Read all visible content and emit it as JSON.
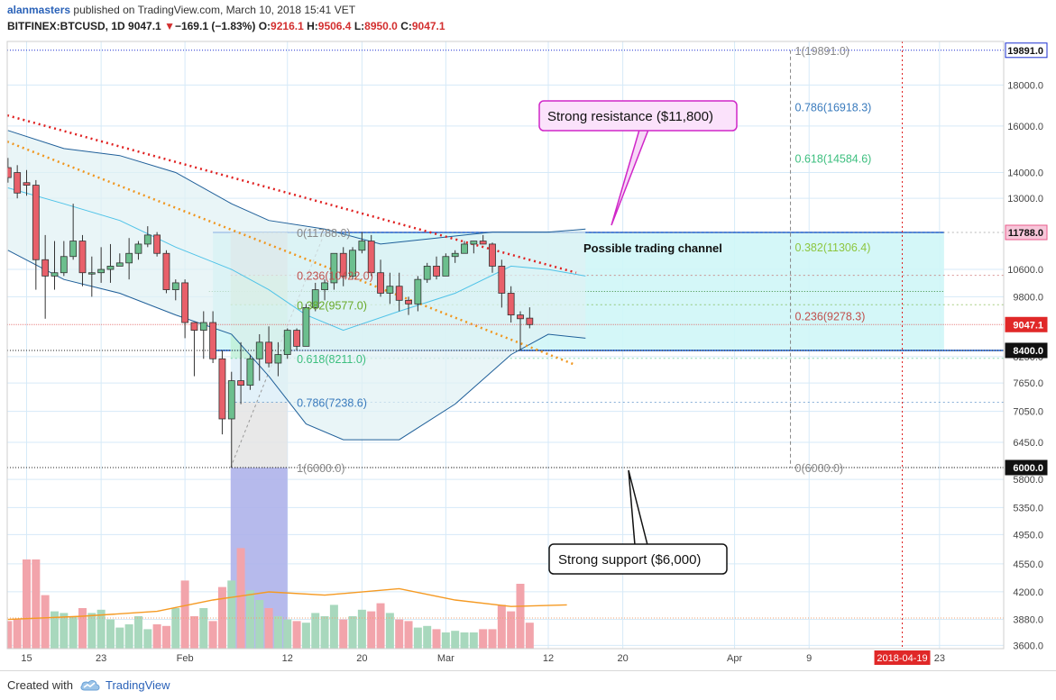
{
  "header": {
    "author": "alanmasters",
    "published_text": "published on TradingView.com, March 10, 2018 15:41 VET",
    "symbol": "BITFINEX:BTCUSD, 1D",
    "last": "9047.1",
    "change_arrow": "▼",
    "change": "−169.1 (−1.83%)",
    "o_label": "O:",
    "o": "9216.1",
    "h_label": "H:",
    "h": "9506.4",
    "l_label": "L:",
    "l": "8950.0",
    "c_label": "C:",
    "c": "9047.1"
  },
  "footer": {
    "created_with": "Created with",
    "brand": "TradingView"
  },
  "colors": {
    "up": "#6cbf8e",
    "down": "#e8606a",
    "up_vol": "#a8d8bd",
    "down_vol": "#f2a4ab",
    "bb": "#1f5f99",
    "bb_fill": "#dff1f4",
    "channel": "#cff6f7",
    "accent_blue": "#1e5fcf",
    "grid": "#d6eaf8"
  },
  "chart_data": {
    "type": "candlestick",
    "y_scale": "log",
    "ylim": [
      3500,
      21500
    ],
    "y_ticks": [
      3600,
      3880,
      4200,
      4550,
      4950,
      5350,
      5800,
      6450,
      7050,
      7650,
      8250,
      9800,
      10600,
      13000,
      14000,
      16000,
      18000
    ],
    "y_tick_labels": [
      "3600.0",
      "3880.0",
      "4200.0",
      "4550.0",
      "4950.0",
      "5350.0",
      "5800.0",
      "6450.0",
      "7050.0",
      "7650.0",
      "8250.0",
      "9800.0",
      "10600.0",
      "13000.0",
      "14000.0",
      "16000.0",
      "18000.0"
    ],
    "x_ticks": [
      "15",
      "23",
      "Feb",
      "12",
      "20",
      "Mar",
      "12",
      "20",
      "Apr",
      "9",
      "23"
    ],
    "x_tick_dates": [
      "2018-01-15",
      "2018-01-23",
      "2018-02-01",
      "2018-02-12",
      "2018-02-20",
      "2018-03-01",
      "2018-03-12",
      "2018-03-20",
      "2018-04-01",
      "2018-04-09",
      "2018-04-23"
    ],
    "x_range": [
      "2018-01-12",
      "2018-04-30"
    ],
    "marker_date_label": "2018-04-19",
    "price_tags": [
      {
        "value": 19891,
        "label": "19891.0",
        "style": "blue"
      },
      {
        "value": 11788,
        "label": "11788.0",
        "style": "pink"
      },
      {
        "value": 9047.1,
        "label": "9047.1",
        "style": "red"
      },
      {
        "value": 8400,
        "label": "8400.0",
        "style": "dark"
      },
      {
        "value": 6000,
        "label": "6000.0",
        "style": "dark"
      }
    ],
    "candles": [
      {
        "d": "2018-01-13",
        "o": 14200,
        "h": 14600,
        "l": 13600,
        "c": 13800
      },
      {
        "d": "2018-01-14",
        "o": 14000,
        "h": 14300,
        "l": 13000,
        "c": 13200
      },
      {
        "d": "2018-01-15",
        "o": 13600,
        "h": 14100,
        "l": 13100,
        "c": 13500
      },
      {
        "d": "2018-01-16",
        "o": 13500,
        "h": 13700,
        "l": 10000,
        "c": 10900
      },
      {
        "d": "2018-01-17",
        "o": 10900,
        "h": 11700,
        "l": 9200,
        "c": 10400
      },
      {
        "d": "2018-01-18",
        "o": 10400,
        "h": 11500,
        "l": 10000,
        "c": 10500
      },
      {
        "d": "2018-01-19",
        "o": 10500,
        "h": 11500,
        "l": 10400,
        "c": 11000
      },
      {
        "d": "2018-01-20",
        "o": 11000,
        "h": 12800,
        "l": 10900,
        "c": 11500
      },
      {
        "d": "2018-01-21",
        "o": 11500,
        "h": 11700,
        "l": 10100,
        "c": 10500
      },
      {
        "d": "2018-01-22",
        "o": 10500,
        "h": 11000,
        "l": 9800,
        "c": 10500
      },
      {
        "d": "2018-01-23",
        "o": 10500,
        "h": 11300,
        "l": 10200,
        "c": 10600
      },
      {
        "d": "2018-01-24",
        "o": 10600,
        "h": 11400,
        "l": 10200,
        "c": 10700
      },
      {
        "d": "2018-01-25",
        "o": 10700,
        "h": 11100,
        "l": 10700,
        "c": 10800
      },
      {
        "d": "2018-01-26",
        "o": 10800,
        "h": 11600,
        "l": 10300,
        "c": 11100
      },
      {
        "d": "2018-01-27",
        "o": 11100,
        "h": 11500,
        "l": 10900,
        "c": 11400
      },
      {
        "d": "2018-01-28",
        "o": 11400,
        "h": 12000,
        "l": 11300,
        "c": 11700
      },
      {
        "d": "2018-01-29",
        "o": 11700,
        "h": 11800,
        "l": 11000,
        "c": 11100
      },
      {
        "d": "2018-01-30",
        "o": 11100,
        "h": 11200,
        "l": 9900,
        "c": 10000
      },
      {
        "d": "2018-01-31",
        "o": 10000,
        "h": 10300,
        "l": 9700,
        "c": 10200
      },
      {
        "d": "2018-02-01",
        "o": 10200,
        "h": 10300,
        "l": 8700,
        "c": 9100
      },
      {
        "d": "2018-02-02",
        "o": 9100,
        "h": 9100,
        "l": 7800,
        "c": 8900
      },
      {
        "d": "2018-02-03",
        "o": 8900,
        "h": 9400,
        "l": 8200,
        "c": 9100
      },
      {
        "d": "2018-02-04",
        "o": 9100,
        "h": 9400,
        "l": 8100,
        "c": 8200
      },
      {
        "d": "2018-02-05",
        "o": 8200,
        "h": 8400,
        "l": 6600,
        "c": 6900
      },
      {
        "d": "2018-02-06",
        "o": 6900,
        "h": 7900,
        "l": 6000,
        "c": 7700
      },
      {
        "d": "2018-02-07",
        "o": 7700,
        "h": 8600,
        "l": 7200,
        "c": 7600
      },
      {
        "d": "2018-02-08",
        "o": 7600,
        "h": 8300,
        "l": 7500,
        "c": 8200
      },
      {
        "d": "2018-02-09",
        "o": 8200,
        "h": 8800,
        "l": 7700,
        "c": 8600
      },
      {
        "d": "2018-02-10",
        "o": 8600,
        "h": 9000,
        "l": 8000,
        "c": 8100
      },
      {
        "d": "2018-02-11",
        "o": 8100,
        "h": 8600,
        "l": 7800,
        "c": 8300
      },
      {
        "d": "2018-02-12",
        "o": 8300,
        "h": 8950,
        "l": 8200,
        "c": 8900
      },
      {
        "d": "2018-02-13",
        "o": 8900,
        "h": 8950,
        "l": 8400,
        "c": 8500
      },
      {
        "d": "2018-02-14",
        "o": 8500,
        "h": 9600,
        "l": 8500,
        "c": 9500
      },
      {
        "d": "2018-02-15",
        "o": 9500,
        "h": 10200,
        "l": 9400,
        "c": 10000
      },
      {
        "d": "2018-02-16",
        "o": 10000,
        "h": 10300,
        "l": 9700,
        "c": 10200
      },
      {
        "d": "2018-02-17",
        "o": 10200,
        "h": 11100,
        "l": 10000,
        "c": 11100
      },
      {
        "d": "2018-02-18",
        "o": 11100,
        "h": 11300,
        "l": 10100,
        "c": 10400
      },
      {
        "d": "2018-02-19",
        "o": 10400,
        "h": 11300,
        "l": 10300,
        "c": 11200
      },
      {
        "d": "2018-02-20",
        "o": 11200,
        "h": 11800,
        "l": 11100,
        "c": 11500
      },
      {
        "d": "2018-02-21",
        "o": 11500,
        "h": 11700,
        "l": 10400,
        "c": 10500
      },
      {
        "d": "2018-02-22",
        "o": 10500,
        "h": 10900,
        "l": 9800,
        "c": 9900
      },
      {
        "d": "2018-02-23",
        "o": 9900,
        "h": 10500,
        "l": 9600,
        "c": 10100
      },
      {
        "d": "2018-02-24",
        "o": 10100,
        "h": 10500,
        "l": 9400,
        "c": 9700
      },
      {
        "d": "2018-02-25",
        "o": 9700,
        "h": 9800,
        "l": 9300,
        "c": 9600
      },
      {
        "d": "2018-02-26",
        "o": 9600,
        "h": 10400,
        "l": 9400,
        "c": 10300
      },
      {
        "d": "2018-02-27",
        "o": 10300,
        "h": 10800,
        "l": 10200,
        "c": 10700
      },
      {
        "d": "2018-02-28",
        "o": 10700,
        "h": 11000,
        "l": 10300,
        "c": 10400
      },
      {
        "d": "2018-03-01",
        "o": 10400,
        "h": 11100,
        "l": 10400,
        "c": 11000
      },
      {
        "d": "2018-03-02",
        "o": 11000,
        "h": 11200,
        "l": 10800,
        "c": 11100
      },
      {
        "d": "2018-03-03",
        "o": 11100,
        "h": 11500,
        "l": 11100,
        "c": 11400
      },
      {
        "d": "2018-03-04",
        "o": 11400,
        "h": 11500,
        "l": 11100,
        "c": 11500
      },
      {
        "d": "2018-03-05",
        "o": 11500,
        "h": 11700,
        "l": 11400,
        "c": 11400
      },
      {
        "d": "2018-03-06",
        "o": 11400,
        "h": 11450,
        "l": 10500,
        "c": 10700
      },
      {
        "d": "2018-03-07",
        "o": 10700,
        "h": 10900,
        "l": 9500,
        "c": 9900
      },
      {
        "d": "2018-03-08",
        "o": 9900,
        "h": 10100,
        "l": 9100,
        "c": 9300
      },
      {
        "d": "2018-03-09",
        "o": 9300,
        "h": 9400,
        "l": 8400,
        "c": 9200
      },
      {
        "d": "2018-03-10",
        "o": 9216.1,
        "h": 9506.4,
        "l": 8950,
        "c": 9047.1
      }
    ],
    "volume_series_note": "",
    "volume": [
      0.17,
      0.18,
      0.55,
      0.55,
      0.33,
      0.23,
      0.22,
      0.2,
      0.25,
      0.22,
      0.24,
      0.18,
      0.13,
      0.15,
      0.2,
      0.12,
      0.15,
      0.14,
      0.25,
      0.42,
      0.2,
      0.25,
      0.17,
      0.38,
      0.42,
      0.62,
      0.36,
      0.3,
      0.25,
      0.2,
      0.18,
      0.17,
      0.16,
      0.22,
      0.2,
      0.27,
      0.18,
      0.2,
      0.24,
      0.23,
      0.28,
      0.22,
      0.18,
      0.17,
      0.13,
      0.14,
      0.12,
      0.1,
      0.11,
      0.1,
      0.1,
      0.12,
      0.12,
      0.27,
      0.23,
      0.4,
      0.16
    ],
    "fib_left": {
      "levels": [
        {
          "value": 11788,
          "label": "0(11788.0)",
          "color": "#888888"
        },
        {
          "value": 10422,
          "label": "0.236(10422.0)",
          "color": "#c0504d"
        },
        {
          "value": 9577,
          "label": "0.382(9577.0)",
          "color": "#6aaa2a"
        },
        {
          "value": 8211,
          "label": "0.618(8211.0)",
          "color": "#3dbf7f"
        },
        {
          "value": 7238.6,
          "label": "0.786(7238.6)",
          "color": "#3a7bbd"
        },
        {
          "value": 6000,
          "label": "1(6000.0)",
          "color": "#888888"
        }
      ]
    },
    "fib_right": {
      "levels": [
        {
          "value": 19891,
          "label": "1(19891.0)",
          "color": "#888888"
        },
        {
          "value": 16918.3,
          "label": "0.786(16918.3)",
          "color": "#3a7bbd"
        },
        {
          "value": 14584.6,
          "label": "0.618(14584.6)",
          "color": "#3dbf7f"
        },
        {
          "value": 11306.4,
          "label": "0.382(11306.4)",
          "color": "#8dc63f"
        },
        {
          "value": 9278.3,
          "label": "0.236(9278.3)",
          "color": "#c0504d"
        },
        {
          "value": 6000,
          "label": "0(6000.0)",
          "color": "#888888"
        }
      ]
    },
    "channel": {
      "top": 11788,
      "bottom": 8400,
      "label": "Possible trading channel"
    },
    "callouts": [
      {
        "text": "Strong resistance ($11,800)",
        "style": "pink"
      },
      {
        "text": "Strong support ($6,000)",
        "style": "black"
      }
    ]
  }
}
